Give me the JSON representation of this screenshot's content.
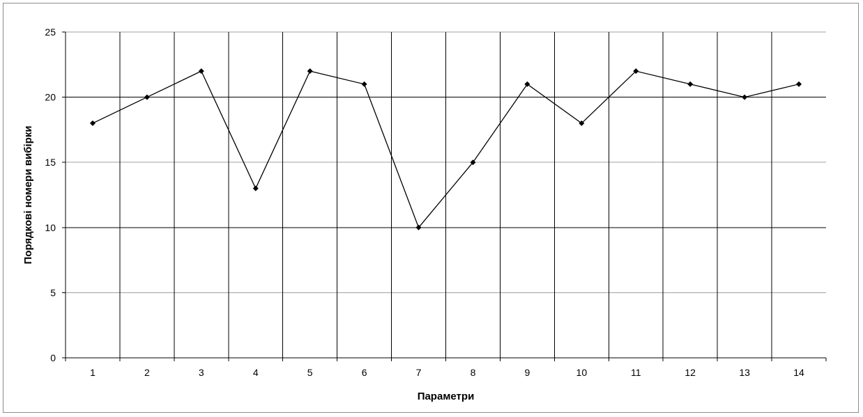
{
  "chart_data": {
    "type": "line",
    "title": "",
    "xlabel": "Параметри",
    "ylabel": "Порядкові номери вибірки",
    "categories": [
      "1",
      "2",
      "3",
      "4",
      "5",
      "6",
      "7",
      "8",
      "9",
      "10",
      "11",
      "12",
      "13",
      "14"
    ],
    "series": [
      {
        "values": [
          18,
          20,
          22,
          13,
          22,
          21,
          10,
          15,
          21,
          18,
          22,
          21,
          20,
          21
        ]
      }
    ],
    "ylim": [
      0,
      25
    ],
    "yticks": [
      0,
      5,
      10,
      15,
      20,
      25
    ],
    "grid": true,
    "legend": "none",
    "colors": {
      "line": "#000000",
      "marker": "#000000",
      "major_grid": "#000000",
      "minor_grid": "#a0a0a0",
      "frame": "#8c8c8c"
    }
  }
}
